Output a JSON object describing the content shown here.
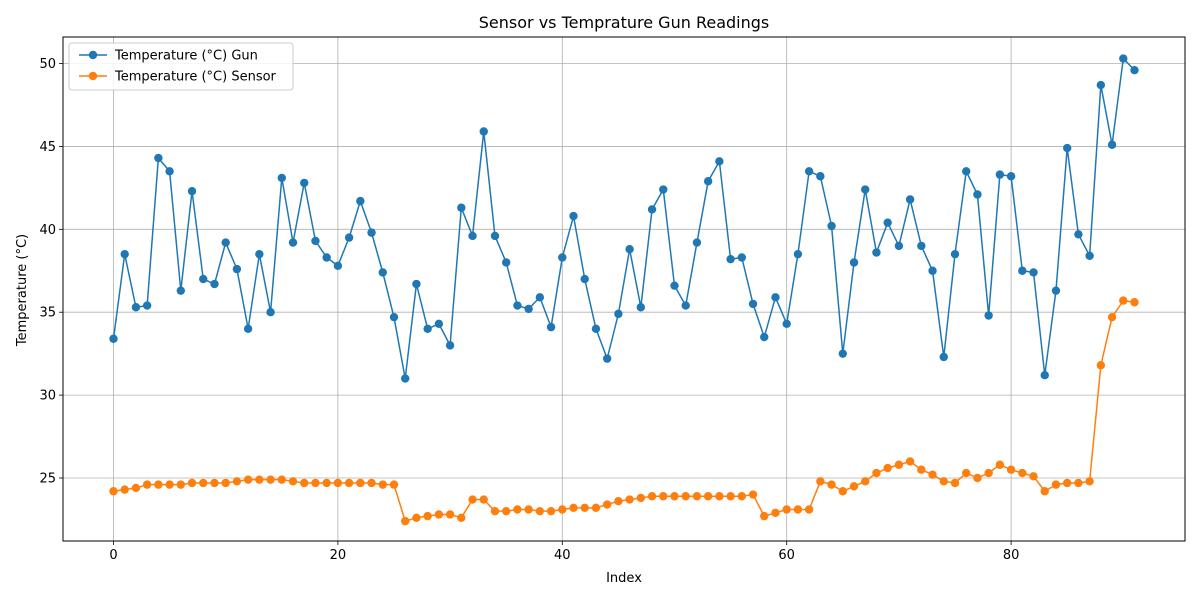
{
  "chart_data": {
    "type": "line",
    "title": "Sensor vs Temprature Gun Readings",
    "xlabel": "Index",
    "ylabel": "Temperature (°C)",
    "xlim": [
      -4.5,
      95.5
    ],
    "ylim": [
      21.2,
      51.6
    ],
    "xticks": [
      0,
      20,
      40,
      60,
      80
    ],
    "yticks": [
      25,
      30,
      35,
      40,
      45,
      50
    ],
    "grid": true,
    "legend_position": "top-left",
    "series": [
      {
        "name": "Temperature (°C) Gun",
        "color": "#1f77b4",
        "values": [
          33.4,
          38.5,
          35.3,
          35.4,
          44.3,
          43.5,
          36.3,
          42.3,
          37.0,
          36.7,
          39.2,
          37.6,
          34.0,
          38.5,
          35.0,
          43.1,
          39.2,
          42.8,
          39.3,
          38.3,
          37.8,
          39.5,
          41.7,
          39.8,
          37.4,
          34.7,
          31.0,
          36.7,
          34.0,
          34.3,
          33.0,
          41.3,
          39.6,
          45.9,
          39.6,
          38.0,
          35.4,
          35.2,
          35.9,
          34.1,
          38.3,
          40.8,
          37.0,
          34.0,
          32.2,
          34.9,
          38.8,
          35.3,
          41.2,
          42.4,
          36.6,
          35.4,
          39.2,
          42.9,
          44.1,
          38.2,
          38.3,
          35.5,
          33.5,
          35.9,
          34.3,
          38.5,
          43.5,
          43.2,
          40.2,
          32.5,
          38.0,
          42.4,
          38.6,
          40.4,
          39.0,
          41.8,
          39.0,
          37.5,
          32.3,
          38.5,
          43.5,
          42.1,
          34.8,
          43.3,
          43.2,
          37.5,
          37.4,
          31.2,
          36.3,
          44.9,
          39.7,
          38.4,
          48.7,
          45.1,
          50.3,
          49.6
        ]
      },
      {
        "name": "Temperature (°C) Sensor",
        "color": "#ff7f0e",
        "values": [
          24.2,
          24.3,
          24.4,
          24.6,
          24.6,
          24.6,
          24.6,
          24.7,
          24.7,
          24.7,
          24.7,
          24.8,
          24.9,
          24.9,
          24.9,
          24.9,
          24.8,
          24.7,
          24.7,
          24.7,
          24.7,
          24.7,
          24.7,
          24.7,
          24.6,
          24.6,
          22.4,
          22.6,
          22.7,
          22.8,
          22.8,
          22.6,
          23.7,
          23.7,
          23.0,
          23.0,
          23.1,
          23.1,
          23.0,
          23.0,
          23.1,
          23.2,
          23.2,
          23.2,
          23.4,
          23.6,
          23.7,
          23.8,
          23.9,
          23.9,
          23.9,
          23.9,
          23.9,
          23.9,
          23.9,
          23.9,
          23.9,
          24.0,
          22.7,
          22.9,
          23.1,
          23.1,
          23.1,
          24.8,
          24.6,
          24.2,
          24.5,
          24.8,
          25.3,
          25.6,
          25.8,
          26.0,
          25.5,
          25.2,
          24.8,
          24.7,
          25.3,
          25.0,
          25.3,
          25.8,
          25.5,
          25.3,
          25.1,
          24.2,
          24.6,
          24.7,
          24.7,
          24.8,
          31.8,
          34.7,
          35.7,
          35.6
        ]
      }
    ]
  }
}
